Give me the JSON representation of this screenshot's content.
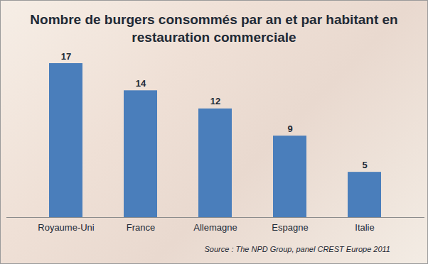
{
  "chart_data": {
    "type": "bar",
    "title": "Nombre de burgers consommés par an et par habitant en restauration commerciale",
    "categories": [
      "Royaume-Uni",
      "France",
      "Allemagne",
      "Espagne",
      "Italie"
    ],
    "values": [
      17,
      14,
      12,
      9,
      5
    ],
    "color": "#4a7ebb",
    "ylim": [
      0,
      17
    ],
    "data_labels": true,
    "tick_labels": "x",
    "grid": false,
    "caption": "Source : The NPD Group, panel CREST Europe 2011"
  }
}
